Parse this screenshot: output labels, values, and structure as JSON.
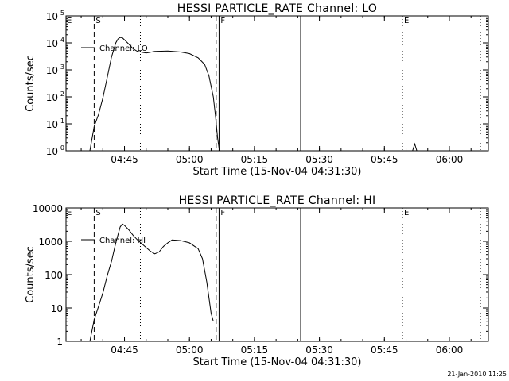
{
  "footer_stamp": "21-Jan-2010 11:25",
  "chart_data": [
    {
      "type": "line",
      "title": "HESSI PARTICLE_RATE Channel: LO",
      "xlabel": "Start Time (15-Nov-04 04:31:30)",
      "ylabel": "Counts/sec",
      "log_y": true,
      "ylim": [
        1,
        100000
      ],
      "xlim": [
        "04:31:30",
        "06:09:00"
      ],
      "x_ticks": [
        "04:45",
        "05:00",
        "05:15",
        "05:30",
        "05:45",
        "06:00"
      ],
      "y_ticks": [
        {
          "value": 1,
          "base": "10",
          "exp": "0"
        },
        {
          "value": 10,
          "base": "10",
          "exp": "1"
        },
        {
          "value": 100,
          "base": "10",
          "exp": "2"
        },
        {
          "value": 1000,
          "base": "10",
          "exp": "3"
        },
        {
          "value": 10000,
          "base": "10",
          "exp": "4"
        },
        {
          "value": 100000,
          "base": "10",
          "exp": "5"
        }
      ],
      "legend": "Channel: LO",
      "legend_position": "top-left",
      "series": [
        {
          "name": "Channel: LO",
          "x": [
            "04:37:00",
            "04:38:00",
            "04:39:00",
            "04:40:00",
            "04:41:00",
            "04:42:00",
            "04:43:00",
            "04:43:30",
            "04:44:00",
            "04:44:30",
            "04:45:00",
            "04:46:00",
            "04:47:00",
            "04:48:00",
            "04:50:00",
            "04:52:00",
            "04:55:00",
            "04:58:00",
            "05:00:00",
            "05:02:00",
            "05:03:30",
            "05:04:30",
            "05:05:30",
            "05:06:00",
            "05:06:30",
            "05:07:00"
          ],
          "y": [
            1,
            8,
            22,
            90,
            500,
            3000,
            10000,
            14000,
            16000,
            15500,
            13000,
            9000,
            6000,
            4800,
            4200,
            4800,
            5000,
            4600,
            4000,
            2800,
            1600,
            600,
            100,
            20,
            3,
            0.8
          ]
        },
        {
          "name": "",
          "x": [
            "05:51:30",
            "05:52:00",
            "05:52:30"
          ],
          "y": [
            1,
            1.8,
            1
          ]
        }
      ],
      "vlines": [
        {
          "x": "04:38:00",
          "style": "dashed",
          "label": "S"
        },
        {
          "x": "04:48:40",
          "style": "dotted",
          "label": ""
        },
        {
          "x": "05:06:10",
          "style": "dashed",
          "label": ""
        },
        {
          "x": "05:06:50",
          "style": "solid",
          "label": "F"
        },
        {
          "x": "05:25:40",
          "style": "solid",
          "label": ""
        },
        {
          "x": "05:49:10",
          "style": "dotted",
          "label": "E"
        },
        {
          "x": "06:07:10",
          "style": "dotted",
          "label": ""
        }
      ],
      "corner_label": "E"
    },
    {
      "type": "line",
      "title": "HESSI PARTICLE_RATE Channel: HI",
      "xlabel": "Start Time (15-Nov-04 04:31:30)",
      "ylabel": "Counts/sec",
      "log_y": true,
      "ylim": [
        1,
        10000
      ],
      "xlim": [
        "04:31:30",
        "06:09:00"
      ],
      "x_ticks": [
        "04:45",
        "05:00",
        "05:15",
        "05:30",
        "05:45",
        "06:00"
      ],
      "y_ticks": [
        {
          "value": 1,
          "text": "1"
        },
        {
          "value": 10,
          "text": "10"
        },
        {
          "value": 100,
          "text": "100"
        },
        {
          "value": 1000,
          "text": "1000"
        },
        {
          "value": 10000,
          "text": "10000"
        }
      ],
      "legend": "Channel: HI",
      "legend_position": "top-left",
      "series": [
        {
          "name": "Channel: HI",
          "x": [
            "04:37:00",
            "04:38:00",
            "04:39:00",
            "04:40:00",
            "04:41:00",
            "04:42:00",
            "04:43:00",
            "04:44:00",
            "04:44:30",
            "04:45:00",
            "04:46:00",
            "04:47:00",
            "04:48:00",
            "04:50:00",
            "04:51:00",
            "04:52:00",
            "04:53:00",
            "04:54:00",
            "04:55:00",
            "04:56:00",
            "04:58:00",
            "05:00:00",
            "05:02:00",
            "05:03:00",
            "05:04:00",
            "05:05:00",
            "05:05:30"
          ],
          "y": [
            1,
            4.5,
            11,
            28,
            90,
            250,
            900,
            2700,
            3300,
            3000,
            2200,
            1500,
            1100,
            650,
            500,
            420,
            480,
            700,
            900,
            1100,
            1050,
            900,
            600,
            300,
            60,
            7,
            4
          ]
        }
      ],
      "vlines": [
        {
          "x": "04:38:00",
          "style": "dashed",
          "label": "S"
        },
        {
          "x": "04:48:40",
          "style": "dotted",
          "label": ""
        },
        {
          "x": "05:06:10",
          "style": "dashed",
          "label": ""
        },
        {
          "x": "05:06:50",
          "style": "solid",
          "label": "F"
        },
        {
          "x": "05:25:40",
          "style": "solid",
          "label": ""
        },
        {
          "x": "05:49:10",
          "style": "dotted",
          "label": "E"
        },
        {
          "x": "06:07:10",
          "style": "dotted",
          "label": ""
        }
      ],
      "corner_label": "E"
    }
  ]
}
